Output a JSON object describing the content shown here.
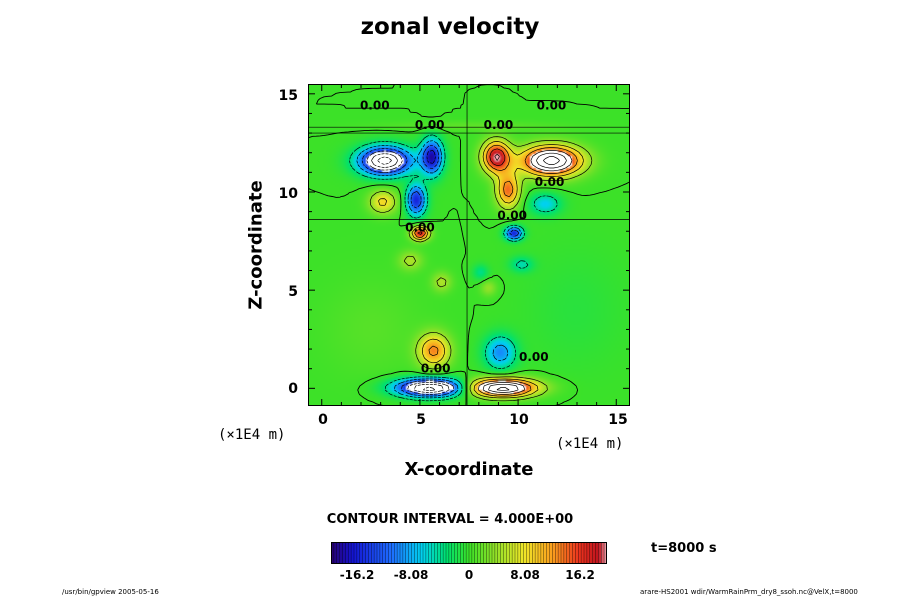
{
  "chart_data": {
    "type": "heatmap",
    "title": "zonal velocity",
    "xlabel": "X-coordinate",
    "ylabel": "Z-coordinate",
    "x_unit": "(×1E4 m)",
    "z_unit": "(×1E4 m)",
    "xlim": [
      -0.7,
      15.7
    ],
    "ylim": [
      -0.9,
      15.5
    ],
    "x_ticks": [
      "0",
      "5",
      "10",
      "15"
    ],
    "y_ticks": [
      "0",
      "5",
      "10",
      "15"
    ],
    "contour_interval_text": "CONTOUR INTERVAL = 4.000E+00",
    "time_text": "t=8000 s",
    "colorbar": {
      "min": -20.2,
      "max": 20.2,
      "tick_labels": [
        "-16.2",
        "-8.08",
        "0",
        "8.08",
        "16.2"
      ],
      "tick_values": [
        -16.2,
        -8.08,
        0,
        8.08,
        16.2
      ]
    },
    "contour_labels": [
      {
        "text": "0.00",
        "x": 2.7,
        "z": 14.2
      },
      {
        "text": "0.00",
        "x": 11.7,
        "z": 14.2
      },
      {
        "text": "0.00",
        "x": 5.5,
        "z": 13.2
      },
      {
        "text": "0.00",
        "x": 9.0,
        "z": 13.2
      },
      {
        "text": "0.00",
        "x": 11.6,
        "z": 10.3
      },
      {
        "text": "0.00",
        "x": 9.7,
        "z": 8.6
      },
      {
        "text": "0.00",
        "x": 5.0,
        "z": 8.0
      },
      {
        "text": "0.00",
        "x": 5.8,
        "z": 0.8
      },
      {
        "text": "0.00",
        "x": 10.8,
        "z": 1.4
      }
    ],
    "features": [
      {
        "x": 3.2,
        "z": 11.6,
        "sx": 1.3,
        "sz": 0.7,
        "v": -26,
        "clip": true
      },
      {
        "x": 5.6,
        "z": 11.8,
        "sx": 0.55,
        "sz": 0.9,
        "v": -18
      },
      {
        "x": 4.8,
        "z": 9.6,
        "sx": 0.5,
        "sz": 0.8,
        "v": -16
      },
      {
        "x": 3.1,
        "z": 9.5,
        "sx": 0.7,
        "sz": 0.6,
        "v": 9
      },
      {
        "x": 5.0,
        "z": 7.9,
        "sx": 0.45,
        "sz": 0.35,
        "v": 18
      },
      {
        "x": 8.9,
        "z": 11.8,
        "sx": 0.7,
        "sz": 0.8,
        "v": 20
      },
      {
        "x": 11.7,
        "z": 11.6,
        "sx": 1.5,
        "sz": 0.75,
        "v": 26,
        "clip": true
      },
      {
        "x": 9.5,
        "z": 10.1,
        "sx": 0.6,
        "sz": 0.9,
        "v": 14
      },
      {
        "x": 9.8,
        "z": 7.9,
        "sx": 0.45,
        "sz": 0.35,
        "v": -16
      },
      {
        "x": 11.4,
        "z": 9.4,
        "sx": 0.8,
        "sz": 0.55,
        "v": -7
      },
      {
        "x": 10.2,
        "z": 6.3,
        "sx": 0.6,
        "sz": 0.4,
        "v": -5
      },
      {
        "x": 4.5,
        "z": 6.5,
        "sx": 0.6,
        "sz": 0.5,
        "v": 5
      },
      {
        "x": 6.1,
        "z": 5.4,
        "sx": 0.5,
        "sz": 0.5,
        "v": 5
      },
      {
        "x": 8.1,
        "z": 5.9,
        "sx": 0.4,
        "sz": 0.4,
        "v": -4
      },
      {
        "x": 8.5,
        "z": 5.1,
        "sx": 0.4,
        "sz": 0.4,
        "v": 4
      },
      {
        "x": 5.7,
        "z": 1.9,
        "sx": 0.8,
        "sz": 0.85,
        "v": 13
      },
      {
        "x": 9.1,
        "z": 1.8,
        "sx": 0.8,
        "sz": 0.85,
        "v": -10
      },
      {
        "x": 5.5,
        "z": 0.0,
        "sx": 1.7,
        "sz": 0.45,
        "v": -26,
        "clip": true
      },
      {
        "x": 9.2,
        "z": 0.0,
        "sx": 1.7,
        "sz": 0.45,
        "v": 26,
        "clip": true
      },
      {
        "x": 7.4,
        "z": 13.4,
        "sx": 4.5,
        "sz": 0.25,
        "v": 1.5
      },
      {
        "x": 2.5,
        "z": 3.0,
        "sx": 2.5,
        "sz": 2.5,
        "v": 1.2
      },
      {
        "x": 13.0,
        "z": 4.0,
        "sx": 2.5,
        "sz": 3.0,
        "v": -1.0
      }
    ]
  },
  "footer": {
    "left": "/usr/bin/gpview 2005-05-16",
    "right": "arare-HS2001 wdir/WarmRainPrm_dry8_ssoh.nc@VelX,t=8000"
  }
}
